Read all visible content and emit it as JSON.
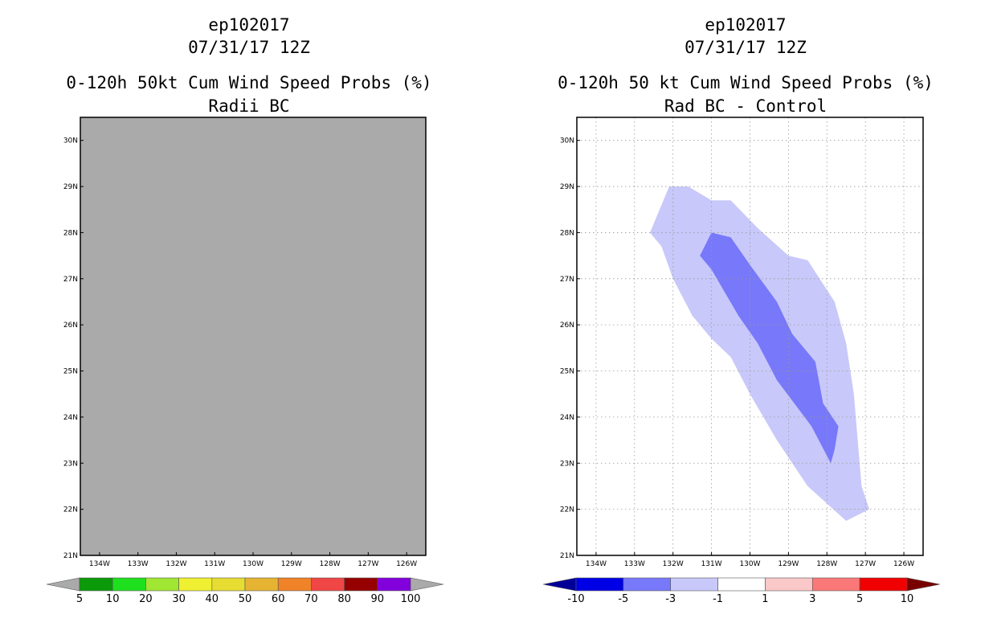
{
  "chart_data": [
    {
      "type": "filled-contour-map",
      "storm": "ep102017",
      "datetime": "07/31/17 12Z",
      "title": "0-120h 50kt Cum Wind Speed Probs (%)",
      "subtitle": "Radii BC",
      "lon_ticks": [
        "134W",
        "133W",
        "132W",
        "131W",
        "130W",
        "129W",
        "128W",
        "127W",
        "126W"
      ],
      "lat_ticks": [
        "21N",
        "22N",
        "23N",
        "24N",
        "25N",
        "26N",
        "27N",
        "28N",
        "29N",
        "30N"
      ],
      "lon_range": [
        -134.5,
        -125.5
      ],
      "lat_range": [
        21,
        30.5
      ],
      "field_state": "undefined (shaded gray)",
      "colors": {
        "undefined": "#aaaaaa"
      },
      "colorbar": {
        "labels": [
          "5",
          "10",
          "20",
          "30",
          "40",
          "50",
          "60",
          "70",
          "80",
          "90",
          "100"
        ],
        "colors": [
          "#0a9a0a",
          "#1ee01e",
          "#a0e632",
          "#f0f032",
          "#e6dc32",
          "#e6b432",
          "#f08228",
          "#f04646",
          "#960000",
          "#8200dc"
        ],
        "end_colors": [
          "#aaaaaa",
          "#aaaaaa"
        ]
      }
    },
    {
      "type": "filled-contour-map",
      "storm": "ep102017",
      "datetime": "07/31/17 12Z",
      "title": "0-120h 50 kt Cum Wind Speed Probs (%)",
      "subtitle": "Rad BC - Control",
      "lon_ticks": [
        "134W",
        "133W",
        "132W",
        "131W",
        "130W",
        "129W",
        "128W",
        "127W",
        "126W"
      ],
      "lat_ticks": [
        "21N",
        "22N",
        "23N",
        "24N",
        "25N",
        "26N",
        "27N",
        "28N",
        "29N",
        "30N"
      ],
      "lon_range": [
        -134.5,
        -125.5
      ],
      "lat_range": [
        21,
        30.5
      ],
      "contours": [
        {
          "level": "-3 to -1",
          "color": "#c8c8fa",
          "points": [
            [
              -131.6,
              29.0
            ],
            [
              -131.0,
              28.7
            ],
            [
              -130.5,
              28.7
            ],
            [
              -129.8,
              28.1
            ],
            [
              -129.0,
              27.5
            ],
            [
              -128.5,
              27.4
            ],
            [
              -127.8,
              26.5
            ],
            [
              -127.5,
              25.6
            ],
            [
              -127.3,
              24.5
            ],
            [
              -127.2,
              23.5
            ],
            [
              -127.1,
              22.5
            ],
            [
              -126.9,
              22.0
            ],
            [
              -127.5,
              21.75
            ],
            [
              -128.5,
              22.5
            ],
            [
              -129.3,
              23.5
            ],
            [
              -130.0,
              24.5
            ],
            [
              -130.5,
              25.3
            ],
            [
              -131.0,
              25.7
            ],
            [
              -131.5,
              26.2
            ],
            [
              -132.0,
              27.0
            ],
            [
              -132.3,
              27.7
            ],
            [
              -132.6,
              28.0
            ],
            [
              -132.3,
              28.6
            ],
            [
              -132.1,
              29.0
            ]
          ]
        },
        {
          "level": "-5 to -3",
          "color": "#7878fa",
          "points": [
            [
              -131.0,
              28.0
            ],
            [
              -130.5,
              27.9
            ],
            [
              -130.0,
              27.3
            ],
            [
              -129.3,
              26.5
            ],
            [
              -128.9,
              25.8
            ],
            [
              -128.3,
              25.2
            ],
            [
              -128.1,
              24.3
            ],
            [
              -127.7,
              23.8
            ],
            [
              -127.8,
              23.3
            ],
            [
              -127.9,
              23.0
            ],
            [
              -128.4,
              23.8
            ],
            [
              -129.3,
              24.8
            ],
            [
              -129.8,
              25.6
            ],
            [
              -130.3,
              26.2
            ],
            [
              -131.0,
              27.2
            ],
            [
              -131.3,
              27.5
            ]
          ]
        }
      ],
      "colorbar": {
        "labels": [
          "-10",
          "-5",
          "-3",
          "-1",
          "1",
          "3",
          "5",
          "10"
        ],
        "colors": [
          "#0000e6",
          "#7878fa",
          "#c8c8fa",
          "#ffffff",
          "#fac8c8",
          "#fa7878",
          "#f00000"
        ],
        "end_colors": [
          "#000096",
          "#780000"
        ]
      }
    }
  ]
}
